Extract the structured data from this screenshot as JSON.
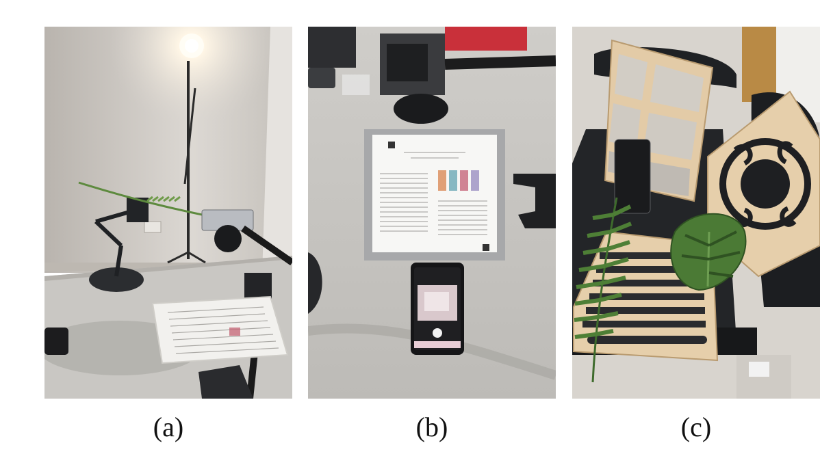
{
  "figure": {
    "panels": [
      {
        "id": "a",
        "caption": "(a)"
      },
      {
        "id": "b",
        "caption": "(b)"
      },
      {
        "id": "c",
        "caption": "(c)"
      }
    ]
  },
  "colors": {
    "wall": "#d9d5d0",
    "desk": "#c8c6c2",
    "plywood": "#e2c9a6",
    "leaf_green": "#4f7f3a",
    "chair_black": "#1d1f22"
  }
}
